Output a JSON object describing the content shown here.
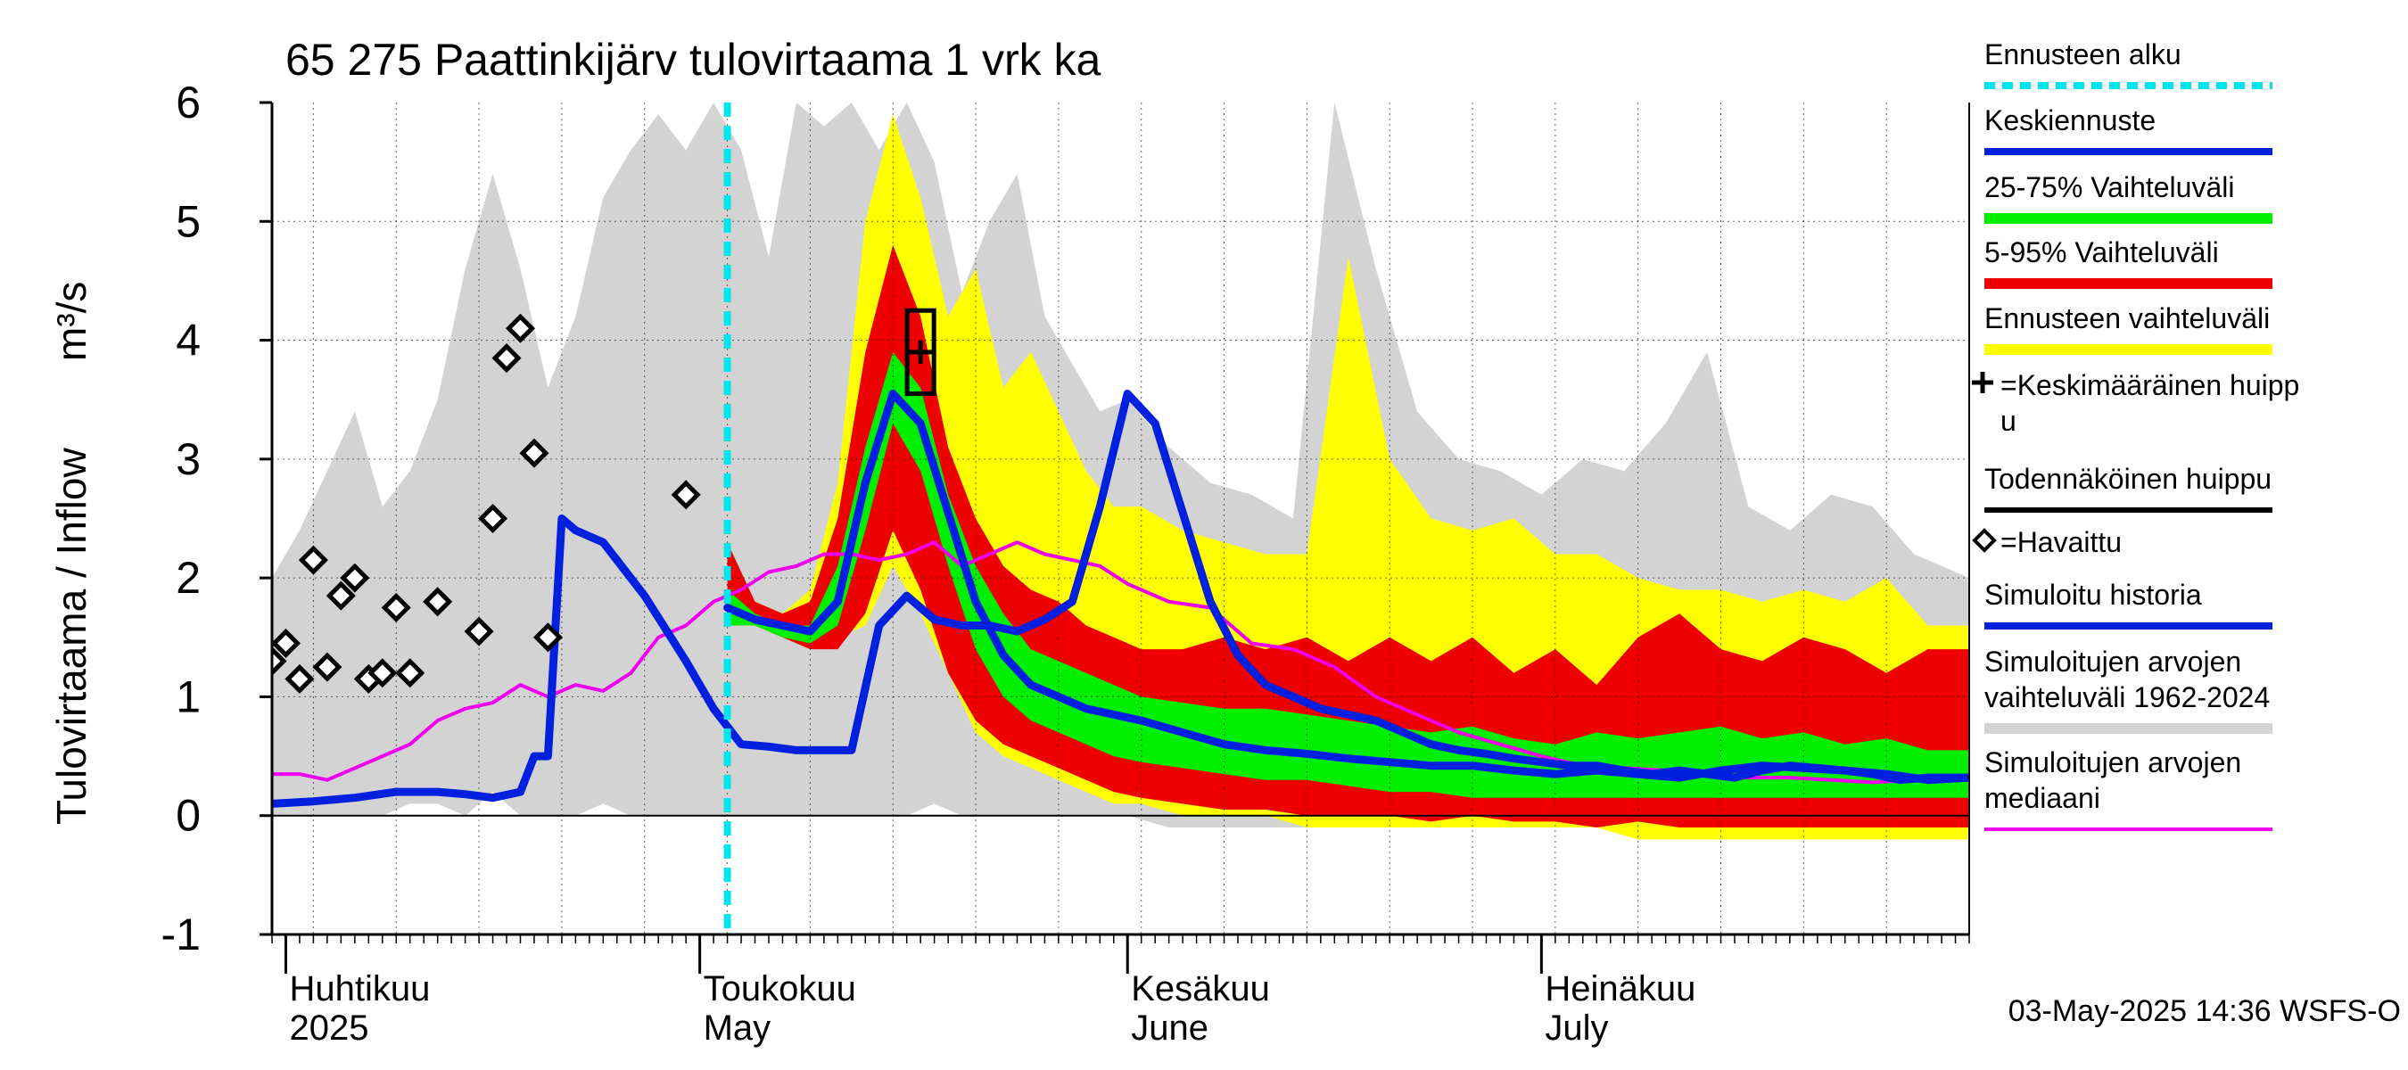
{
  "chart_data": {
    "type": "area",
    "title": "65 275 Paattinkijärv tulovirtaama 1 vrk ka",
    "ylabel": "Tulovirtaama / Inflow",
    "yunit": "m³/s",
    "ylim": [
      -1,
      6
    ],
    "yticks": [
      "6",
      "5",
      "4",
      "3",
      "2",
      "1",
      "0",
      "-1"
    ],
    "x_start": "2025-03-31",
    "x_end": "2025-08-01",
    "forecast_start": "2025-05-03",
    "month_labels": [
      {
        "fi": "Huhtikuu",
        "en": "2025",
        "date": "2025-04-01"
      },
      {
        "fi": "Toukokuu",
        "en": "May",
        "date": "2025-05-01"
      },
      {
        "fi": "Kesäkuu",
        "en": "June",
        "date": "2025-06-01"
      },
      {
        "fi": "Heinäkuu",
        "en": "July",
        "date": "2025-07-01"
      }
    ],
    "grid": true,
    "timestamp": "03-May-2025 14:36 WSFS-O",
    "legend_position": "right",
    "legend": [
      {
        "key": "forecast_start",
        "label": "Ennusteen alku",
        "color": "#00e5ee"
      },
      {
        "key": "mean",
        "label": "Keskiennuste",
        "color": "#0020e0"
      },
      {
        "key": "p25_75",
        "label": "25-75% Vaihteluväli",
        "color": "#00ee00"
      },
      {
        "key": "p5_95",
        "label": "5-95% Vaihteluväli",
        "color": "#ee0000"
      },
      {
        "key": "range",
        "label": "Ennusteen vaihteluväli",
        "color": "#ffff00"
      },
      {
        "key": "mean_peak",
        "label": "=Keskimääräinen huippu",
        "color": "#000000"
      },
      {
        "key": "likely_peak",
        "label": "Todennäköinen huippu",
        "color": "#000000"
      },
      {
        "key": "observed",
        "label": "=Havaittu",
        "color": "#000000"
      },
      {
        "key": "sim_history",
        "label": "Simuloitu historia",
        "color": "#0020e0"
      },
      {
        "key": "hist_range",
        "label": "Simuloitujen arvojen vaihteluväli 1962-2024",
        "color": "#d3d3d3"
      },
      {
        "key": "hist_median",
        "label": "Simuloitujen arvojen mediaani",
        "color": "#ee00ee"
      }
    ],
    "series": {
      "hist_range": {
        "x": [
          "2025-03-31",
          "2025-04-02",
          "2025-04-04",
          "2025-04-06",
          "2025-04-08",
          "2025-04-10",
          "2025-04-12",
          "2025-04-14",
          "2025-04-16",
          "2025-04-18",
          "2025-04-20",
          "2025-04-22",
          "2025-04-24",
          "2025-04-26",
          "2025-04-28",
          "2025-04-30",
          "2025-05-02",
          "2025-05-04",
          "2025-05-06",
          "2025-05-08",
          "2025-05-10",
          "2025-05-12",
          "2025-05-14",
          "2025-05-16",
          "2025-05-18",
          "2025-05-20",
          "2025-05-22",
          "2025-05-24",
          "2025-05-26",
          "2025-05-28",
          "2025-05-30",
          "2025-06-01",
          "2025-06-04",
          "2025-06-07",
          "2025-06-10",
          "2025-06-13",
          "2025-06-16",
          "2025-06-19",
          "2025-06-22",
          "2025-06-25",
          "2025-06-28",
          "2025-07-01",
          "2025-07-04",
          "2025-07-07",
          "2025-07-10",
          "2025-07-13",
          "2025-07-16",
          "2025-07-19",
          "2025-07-22",
          "2025-07-25",
          "2025-07-28",
          "2025-08-01"
        ],
        "upper": [
          2.0,
          2.4,
          2.9,
          3.4,
          2.6,
          2.9,
          3.5,
          4.6,
          5.4,
          4.6,
          3.6,
          4.2,
          5.2,
          5.6,
          5.9,
          5.6,
          6.0,
          5.6,
          4.7,
          6.0,
          5.8,
          6.0,
          5.6,
          6.0,
          5.5,
          4.4,
          5.0,
          5.4,
          4.2,
          3.8,
          3.4,
          3.5,
          3.1,
          2.8,
          2.7,
          2.5,
          6.0,
          4.6,
          3.4,
          3.0,
          2.9,
          2.7,
          3.0,
          2.9,
          3.3,
          3.9,
          2.6,
          2.4,
          2.7,
          2.6,
          2.2,
          2.0
        ],
        "lower": [
          0.0,
          0.0,
          0.0,
          0.0,
          0.0,
          0.1,
          0.1,
          0.0,
          0.2,
          0.0,
          0.0,
          0.0,
          0.1,
          0.0,
          0.0,
          0.0,
          0.0,
          0.0,
          0.0,
          0.0,
          0.0,
          0.0,
          0.0,
          0.0,
          0.1,
          0.0,
          0.0,
          0.0,
          0.0,
          0.0,
          0.0,
          0.0,
          -0.1,
          -0.1,
          -0.1,
          -0.1,
          -0.1,
          -0.1,
          -0.1,
          -0.1,
          -0.1,
          -0.1,
          -0.1,
          -0.1,
          -0.1,
          -0.1,
          -0.1,
          -0.1,
          -0.1,
          -0.1,
          -0.1,
          -0.1
        ]
      },
      "range": {
        "x": [
          "2025-05-03",
          "2025-05-05",
          "2025-05-07",
          "2025-05-09",
          "2025-05-11",
          "2025-05-13",
          "2025-05-15",
          "2025-05-17",
          "2025-05-19",
          "2025-05-21",
          "2025-05-23",
          "2025-05-25",
          "2025-05-27",
          "2025-05-29",
          "2025-05-31",
          "2025-06-02",
          "2025-06-05",
          "2025-06-08",
          "2025-06-11",
          "2025-06-14",
          "2025-06-17",
          "2025-06-20",
          "2025-06-23",
          "2025-06-26",
          "2025-06-29",
          "2025-07-02",
          "2025-07-05",
          "2025-07-08",
          "2025-07-11",
          "2025-07-14",
          "2025-07-17",
          "2025-07-20",
          "2025-07-23",
          "2025-07-26",
          "2025-07-29",
          "2025-08-01"
        ],
        "upper": [
          1.9,
          1.8,
          1.7,
          1.9,
          2.8,
          5.0,
          5.9,
          5.2,
          4.2,
          4.6,
          3.6,
          3.9,
          3.4,
          2.9,
          2.6,
          2.6,
          2.4,
          2.3,
          2.2,
          2.2,
          4.7,
          3.0,
          2.5,
          2.4,
          2.5,
          2.2,
          2.2,
          2.0,
          1.9,
          1.9,
          1.8,
          1.9,
          1.8,
          2.0,
          1.6,
          1.6
        ],
        "lower": [
          1.6,
          1.6,
          1.5,
          1.4,
          1.5,
          1.6,
          2.1,
          1.7,
          1.2,
          0.7,
          0.5,
          0.4,
          0.3,
          0.2,
          0.1,
          0.1,
          0.0,
          0.0,
          0.0,
          -0.1,
          -0.1,
          -0.1,
          -0.1,
          -0.1,
          -0.1,
          -0.1,
          -0.1,
          -0.2,
          -0.2,
          -0.2,
          -0.2,
          -0.2,
          -0.2,
          -0.2,
          -0.2,
          -0.2
        ]
      },
      "p5_95": {
        "x": [
          "2025-05-03",
          "2025-05-05",
          "2025-05-07",
          "2025-05-09",
          "2025-05-11",
          "2025-05-13",
          "2025-05-15",
          "2025-05-17",
          "2025-05-19",
          "2025-05-21",
          "2025-05-23",
          "2025-05-25",
          "2025-05-27",
          "2025-05-29",
          "2025-05-31",
          "2025-06-02",
          "2025-06-05",
          "2025-06-08",
          "2025-06-11",
          "2025-06-14",
          "2025-06-17",
          "2025-06-20",
          "2025-06-23",
          "2025-06-26",
          "2025-06-29",
          "2025-07-02",
          "2025-07-05",
          "2025-07-08",
          "2025-07-11",
          "2025-07-14",
          "2025-07-17",
          "2025-07-20",
          "2025-07-23",
          "2025-07-26",
          "2025-07-29",
          "2025-08-01"
        ],
        "upper": [
          2.3,
          1.8,
          1.7,
          1.8,
          2.5,
          3.9,
          4.8,
          4.2,
          3.1,
          2.5,
          2.1,
          1.9,
          1.8,
          1.6,
          1.5,
          1.4,
          1.4,
          1.5,
          1.4,
          1.5,
          1.3,
          1.5,
          1.3,
          1.5,
          1.2,
          1.4,
          1.1,
          1.5,
          1.7,
          1.4,
          1.3,
          1.5,
          1.4,
          1.2,
          1.4,
          1.4
        ],
        "lower": [
          1.6,
          1.6,
          1.5,
          1.4,
          1.4,
          1.7,
          2.4,
          1.9,
          1.2,
          0.8,
          0.6,
          0.5,
          0.4,
          0.3,
          0.2,
          0.15,
          0.1,
          0.05,
          0.05,
          0.0,
          0.0,
          0.0,
          -0.05,
          0.0,
          -0.05,
          -0.05,
          -0.1,
          -0.05,
          -0.1,
          -0.1,
          -0.1,
          -0.1,
          -0.1,
          -0.1,
          -0.1,
          -0.1
        ]
      },
      "p25_75": {
        "x": [
          "2025-05-03",
          "2025-05-05",
          "2025-05-07",
          "2025-05-09",
          "2025-05-11",
          "2025-05-13",
          "2025-05-15",
          "2025-05-17",
          "2025-05-19",
          "2025-05-21",
          "2025-05-23",
          "2025-05-25",
          "2025-05-27",
          "2025-05-29",
          "2025-05-31",
          "2025-06-02",
          "2025-06-05",
          "2025-06-08",
          "2025-06-11",
          "2025-06-14",
          "2025-06-17",
          "2025-06-20",
          "2025-06-23",
          "2025-06-26",
          "2025-06-29",
          "2025-07-02",
          "2025-07-05",
          "2025-07-08",
          "2025-07-11",
          "2025-07-14",
          "2025-07-17",
          "2025-07-20",
          "2025-07-23",
          "2025-07-26",
          "2025-07-29",
          "2025-08-01"
        ],
        "upper": [
          1.9,
          1.7,
          1.6,
          1.6,
          2.1,
          3.1,
          3.9,
          3.6,
          2.7,
          2.1,
          1.7,
          1.4,
          1.3,
          1.2,
          1.1,
          1.0,
          0.95,
          0.9,
          0.9,
          0.85,
          0.8,
          0.75,
          0.7,
          0.75,
          0.65,
          0.6,
          0.7,
          0.65,
          0.7,
          0.75,
          0.65,
          0.7,
          0.6,
          0.65,
          0.55,
          0.55
        ],
        "lower": [
          1.6,
          1.6,
          1.5,
          1.45,
          1.6,
          2.4,
          3.3,
          2.9,
          2.1,
          1.4,
          1.0,
          0.8,
          0.7,
          0.6,
          0.5,
          0.45,
          0.4,
          0.35,
          0.3,
          0.3,
          0.25,
          0.2,
          0.2,
          0.15,
          0.15,
          0.15,
          0.15,
          0.15,
          0.15,
          0.15,
          0.15,
          0.15,
          0.15,
          0.15,
          0.15,
          0.15
        ]
      },
      "mean": {
        "x": [
          "2025-05-03",
          "2025-05-05",
          "2025-05-07",
          "2025-05-09",
          "2025-05-11",
          "2025-05-13",
          "2025-05-15",
          "2025-05-17",
          "2025-05-19",
          "2025-05-21",
          "2025-05-23",
          "2025-05-25",
          "2025-05-27",
          "2025-05-29",
          "2025-05-31",
          "2025-06-02",
          "2025-06-05",
          "2025-06-08",
          "2025-06-11",
          "2025-06-14",
          "2025-06-17",
          "2025-06-20",
          "2025-06-23",
          "2025-06-26",
          "2025-06-29",
          "2025-07-02",
          "2025-07-05",
          "2025-07-08",
          "2025-07-11",
          "2025-07-14",
          "2025-07-17",
          "2025-07-20",
          "2025-07-23",
          "2025-07-26",
          "2025-07-29",
          "2025-08-01"
        ],
        "y": [
          1.75,
          1.65,
          1.6,
          1.55,
          1.8,
          2.8,
          3.55,
          3.3,
          2.55,
          1.8,
          1.35,
          1.1,
          1.0,
          0.9,
          0.85,
          0.8,
          0.7,
          0.6,
          0.55,
          0.52,
          0.48,
          0.45,
          0.42,
          0.42,
          0.38,
          0.35,
          0.38,
          0.35,
          0.32,
          0.38,
          0.42,
          0.4,
          0.38,
          0.35,
          0.3,
          0.32
        ]
      },
      "sim_history": {
        "x": [
          "2025-03-31",
          "2025-04-03",
          "2025-04-06",
          "2025-04-09",
          "2025-04-12",
          "2025-04-14",
          "2025-04-16",
          "2025-04-18",
          "2025-04-19",
          "2025-04-20",
          "2025-04-21",
          "2025-04-22",
          "2025-04-24",
          "2025-04-27",
          "2025-04-30",
          "2025-05-02",
          "2025-05-04",
          "2025-05-06",
          "2025-05-08",
          "2025-05-10",
          "2025-05-12",
          "2025-05-14",
          "2025-05-16",
          "2025-05-18",
          "2025-05-20",
          "2025-05-22",
          "2025-05-24",
          "2025-05-26",
          "2025-05-28",
          "2025-05-30",
          "2025-06-01",
          "2025-06-03",
          "2025-06-05",
          "2025-06-07",
          "2025-06-09",
          "2025-06-11",
          "2025-06-13",
          "2025-06-15",
          "2025-06-17",
          "2025-06-19",
          "2025-06-21",
          "2025-06-23",
          "2025-06-25",
          "2025-06-27",
          "2025-06-29",
          "2025-07-01",
          "2025-07-03",
          "2025-07-05",
          "2025-07-07",
          "2025-07-09",
          "2025-07-11",
          "2025-07-13",
          "2025-07-15",
          "2025-07-17",
          "2025-07-19",
          "2025-07-21",
          "2025-07-23",
          "2025-07-25",
          "2025-07-27",
          "2025-07-29",
          "2025-08-01"
        ],
        "y": [
          0.1,
          0.12,
          0.15,
          0.2,
          0.2,
          0.18,
          0.15,
          0.2,
          0.5,
          0.5,
          2.5,
          2.4,
          2.3,
          1.85,
          1.3,
          0.9,
          0.6,
          0.58,
          0.55,
          0.55,
          0.55,
          1.6,
          1.85,
          1.65,
          1.6,
          1.6,
          1.55,
          1.65,
          1.8,
          2.6,
          3.55,
          3.3,
          2.55,
          1.8,
          1.35,
          1.1,
          1.0,
          0.9,
          0.85,
          0.8,
          0.7,
          0.6,
          0.55,
          0.52,
          0.48,
          0.45,
          0.42,
          0.42,
          0.38,
          0.35,
          0.38,
          0.35,
          0.32,
          0.38,
          0.42,
          0.4,
          0.38,
          0.35,
          0.3,
          0.32,
          0.32
        ]
      },
      "hist_median": {
        "x": [
          "2025-03-31",
          "2025-04-02",
          "2025-04-04",
          "2025-04-06",
          "2025-04-08",
          "2025-04-10",
          "2025-04-12",
          "2025-04-14",
          "2025-04-16",
          "2025-04-18",
          "2025-04-20",
          "2025-04-22",
          "2025-04-24",
          "2025-04-26",
          "2025-04-28",
          "2025-04-30",
          "2025-05-02",
          "2025-05-04",
          "2025-05-06",
          "2025-05-08",
          "2025-05-10",
          "2025-05-12",
          "2025-05-14",
          "2025-05-16",
          "2025-05-18",
          "2025-05-20",
          "2025-05-22",
          "2025-05-24",
          "2025-05-26",
          "2025-05-28",
          "2025-05-30",
          "2025-06-01",
          "2025-06-04",
          "2025-06-07",
          "2025-06-10",
          "2025-06-13",
          "2025-06-16",
          "2025-06-19",
          "2025-06-22",
          "2025-06-25",
          "2025-06-28",
          "2025-07-01",
          "2025-07-04",
          "2025-07-07",
          "2025-07-10",
          "2025-07-13",
          "2025-07-16",
          "2025-07-19",
          "2025-07-22",
          "2025-07-25",
          "2025-07-28",
          "2025-08-01"
        ],
        "y": [
          0.35,
          0.35,
          0.3,
          0.4,
          0.5,
          0.6,
          0.8,
          0.9,
          0.95,
          1.1,
          1.0,
          1.1,
          1.05,
          1.2,
          1.5,
          1.6,
          1.8,
          1.9,
          2.05,
          2.1,
          2.2,
          2.2,
          2.15,
          2.2,
          2.3,
          2.1,
          2.2,
          2.3,
          2.2,
          2.15,
          2.1,
          1.95,
          1.8,
          1.75,
          1.45,
          1.4,
          1.25,
          1.0,
          0.85,
          0.7,
          0.6,
          0.5,
          0.42,
          0.4,
          0.38,
          0.35,
          0.32,
          0.32,
          0.3,
          0.28,
          0.3,
          0.3
        ]
      },
      "observed": {
        "x": [
          "2025-03-31",
          "2025-04-01",
          "2025-04-02",
          "2025-04-03",
          "2025-04-04",
          "2025-04-05",
          "2025-04-06",
          "2025-04-07",
          "2025-04-08",
          "2025-04-09",
          "2025-04-10",
          "2025-04-12",
          "2025-04-15",
          "2025-04-16",
          "2025-04-17",
          "2025-04-18",
          "2025-04-19",
          "2025-04-20",
          "2025-04-30"
        ],
        "y": [
          1.3,
          1.45,
          1.15,
          2.15,
          1.25,
          1.85,
          2.0,
          1.15,
          1.2,
          1.75,
          1.2,
          1.8,
          1.55,
          2.5,
          3.85,
          4.1,
          3.05,
          1.5,
          2.7
        ]
      },
      "mean_peak": {
        "x": "2025-05-17",
        "y": 3.9
      },
      "likely_peak": {
        "x": "2025-05-17",
        "y_low": 3.55,
        "y_high": 4.25
      }
    }
  }
}
